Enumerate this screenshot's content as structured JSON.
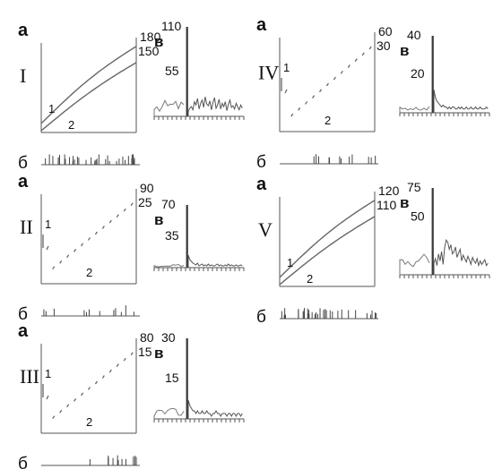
{
  "panel_labels": {
    "a": "а",
    "b": "б",
    "v": "в"
  },
  "curve_labels": [
    "1",
    "2"
  ],
  "chart_data": [
    {
      "type": "line",
      "roman": "I",
      "style": "line",
      "top_max": "180",
      "top_min": "150",
      "hist_max": "110",
      "hist_mid": "55",
      "hist_ylim": [
        0,
        110
      ],
      "spike": 110,
      "hist_tail": [
        6,
        10,
        12,
        8,
        18,
        14,
        22,
        9,
        16,
        20,
        11,
        24,
        15,
        13,
        19,
        8,
        17,
        23,
        10,
        14,
        21,
        9,
        16,
        12,
        18,
        7,
        15,
        20,
        11,
        13,
        9,
        16,
        12,
        8,
        14,
        10
      ]
    },
    {
      "type": "scatter",
      "roman": "II",
      "style": "dots",
      "top_max": "90",
      "top_min": "25",
      "hist_max": "70",
      "hist_mid": "35",
      "hist_ylim": [
        0,
        70
      ],
      "spike": 70,
      "hist_tail": [
        14,
        9,
        7,
        5,
        4,
        3,
        5,
        2,
        3,
        4,
        2,
        3,
        2,
        4,
        2,
        3,
        2,
        2,
        3,
        4,
        2,
        3,
        2,
        2,
        3,
        2,
        4,
        2,
        3,
        2,
        2,
        3,
        2,
        2,
        3,
        2
      ]
    },
    {
      "type": "scatter",
      "roman": "III",
      "style": "dots",
      "top_max": "80",
      "top_min": "15",
      "hist_max": "30",
      "hist_mid": "15",
      "hist_ylim": [
        0,
        30
      ],
      "spike": 30,
      "hist_tail": [
        7,
        5,
        4,
        3,
        3,
        2,
        3,
        2,
        2,
        3,
        2,
        2,
        3,
        2,
        2,
        1,
        2,
        2,
        3,
        2,
        2,
        1,
        2,
        2,
        2,
        1,
        2,
        2,
        1,
        2,
        2,
        1,
        2,
        2,
        1,
        2
      ]
    },
    {
      "type": "scatter",
      "roman": "IV",
      "style": "dots",
      "top_max": "60",
      "top_min": "30",
      "hist_max": "40",
      "hist_mid": "20",
      "hist_ylim": [
        0,
        40
      ],
      "spike": 40,
      "hist_tail": [
        12,
        8,
        6,
        5,
        4,
        3,
        4,
        3,
        3,
        2,
        3,
        2,
        3,
        3,
        2,
        2,
        3,
        2,
        3,
        2,
        2,
        3,
        2,
        2,
        3,
        2,
        2,
        3,
        2,
        2,
        3,
        2,
        2,
        2,
        3,
        2
      ]
    },
    {
      "type": "line",
      "roman": "V",
      "style": "line",
      "top_max": "120",
      "top_min": "110",
      "hist_max": "75",
      "hist_mid": "50",
      "hist_ylim": [
        0,
        75
      ],
      "spike": 75,
      "hist_tail": [
        10,
        14,
        8,
        18,
        12,
        20,
        9,
        24,
        30,
        28,
        22,
        26,
        18,
        20,
        24,
        15,
        19,
        22,
        12,
        17,
        14,
        11,
        16,
        13,
        9,
        15,
        12,
        10,
        14,
        8,
        12,
        9,
        11,
        13,
        8,
        10
      ]
    }
  ]
}
